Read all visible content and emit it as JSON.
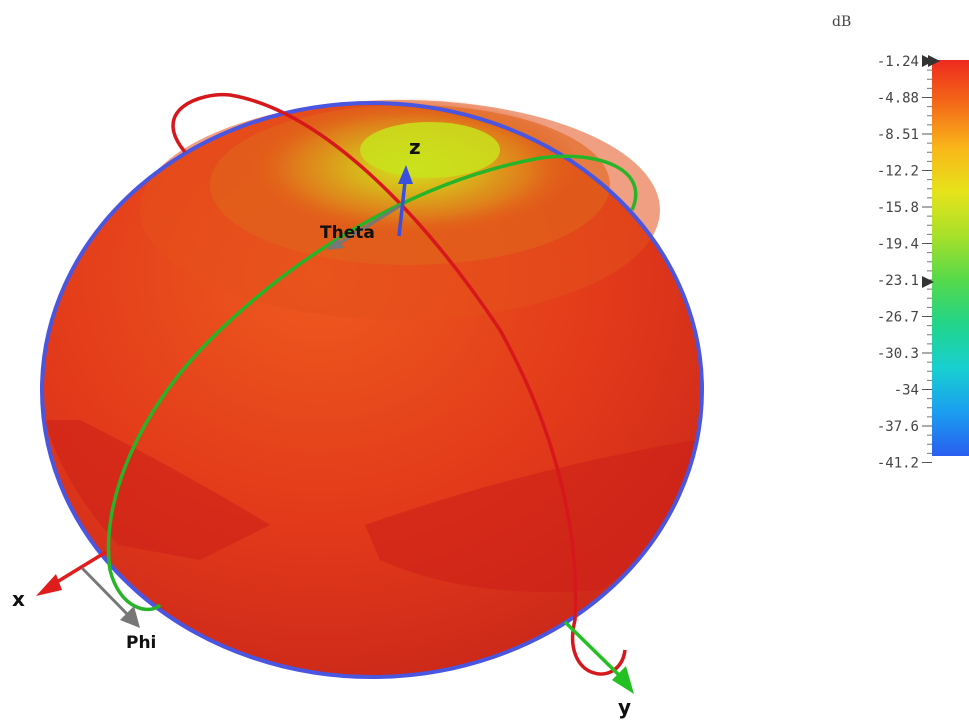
{
  "pattern": {
    "axis_labels": {
      "x": "x",
      "y": "y",
      "z": "z",
      "theta": "Theta",
      "phi": "Phi"
    },
    "colors": {
      "sphere_main": "#e0331a",
      "sphere_top": "#cfe01a",
      "x_axis": "#e01c1c",
      "y_axis": "#22c022",
      "z_axis": "#3a4fe0",
      "great_circle_red": "#d6181c",
      "great_circle_green": "#28b428",
      "equator_blue": "#4a55e0",
      "aux_arrows": "#777777"
    }
  },
  "colorbar": {
    "unit": "dB",
    "max_marker": "-1.24",
    "current_marker": "-23.1",
    "ticks": [
      "-1.24",
      "-4.88",
      "-8.51",
      "-12.2",
      "-15.8",
      "-19.4",
      "-23.1",
      "-26.7",
      "-30.3",
      "-34",
      "-37.6",
      "-41.2"
    ],
    "gradient_colors": [
      "#ee2a1e",
      "#f46a18",
      "#f9b61a",
      "#e6e31a",
      "#a8e02a",
      "#55d94a",
      "#22d48a",
      "#18d0d0",
      "#1a9ef0",
      "#2a5ef0"
    ]
  }
}
